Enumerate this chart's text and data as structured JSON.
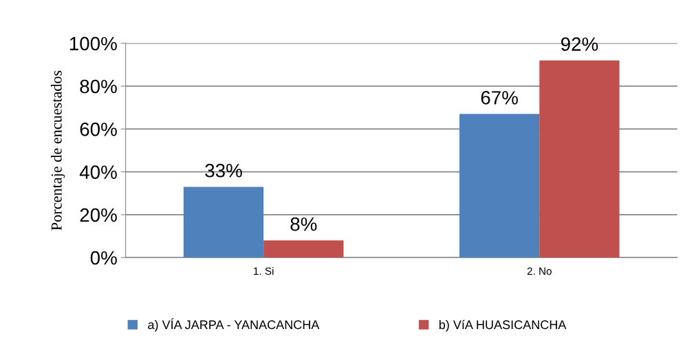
{
  "chart_data": {
    "type": "bar",
    "ylabel": "Porcentaje de encuestados",
    "categories": [
      "1. Si",
      "2. No"
    ],
    "series": [
      {
        "name": "a) VÍA JARPA - YANACANCHA",
        "color": "#4f81bd",
        "values": [
          33,
          67
        ],
        "value_labels": [
          "33%",
          "67%"
        ]
      },
      {
        "name": "b) VíA HUASICANCHA",
        "color": "#c0504d",
        "values": [
          8,
          92
        ],
        "value_labels": [
          "8%",
          "92%"
        ]
      }
    ],
    "ylim": [
      0,
      100
    ],
    "yticks": [
      {
        "value": 0,
        "label": "0%"
      },
      {
        "value": 20,
        "label": "20%"
      },
      {
        "value": 40,
        "label": "40%"
      },
      {
        "value": 60,
        "label": "60%"
      },
      {
        "value": 80,
        "label": "80%"
      },
      {
        "value": 100,
        "label": "100%"
      }
    ],
    "grid": "y",
    "legend": "bottom"
  }
}
